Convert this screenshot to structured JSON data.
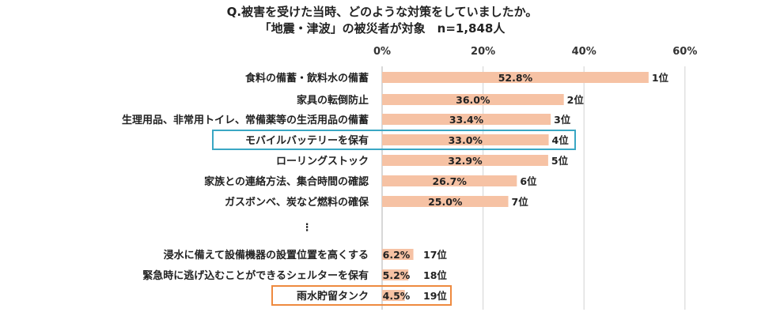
{
  "chart_data": {
    "type": "bar",
    "orientation": "horizontal",
    "title": "Q.被害を受けた当時、どのような対策をしていましたか。",
    "subtitle": "「地震・津波」の被災者が対象　n=1,848人",
    "xlim": [
      0,
      60
    ],
    "x_ticks": [
      "0%",
      "20%",
      "40%",
      "60%"
    ],
    "grid": true,
    "colors": {
      "bar": "#f6c2a4",
      "highlight_blue": "#3aa7c4",
      "highlight_orange": "#ee8a3f"
    },
    "ellipsis": "⋮",
    "categories": [
      "食料の備蓄・飲料水の備蓄",
      "家具の転倒防止",
      "生理用品、非常用トイレ、常備薬等の生活用品の備蓄",
      "モバイルバッテリーを保有",
      "ローリングストック",
      "家族との連絡方法、集合時間の確認",
      "ガスボンベ、炭など燃料の確保",
      "浸水に備えて設備機器の設置位置を高くする",
      "緊急時に逃げ込むことができるシェルターを保有",
      "雨水貯留タンク"
    ],
    "values": [
      52.8,
      36.0,
      33.4,
      33.0,
      32.9,
      26.7,
      25.0,
      6.2,
      5.2,
      4.5
    ],
    "value_labels": [
      "52.8%",
      "36.0%",
      "33.4%",
      "33.0%",
      "32.9%",
      "26.7%",
      "25.0%",
      "6.2%",
      "5.2%",
      "4.5%"
    ],
    "ranks": [
      "1位",
      "2位",
      "3位",
      "4位",
      "5位",
      "6位",
      "7位",
      "17位",
      "18位",
      "19位"
    ],
    "highlight": [
      {
        "category": "モバイルバッテリーを保有",
        "color": "#3aa7c4"
      },
      {
        "category": "雨水貯留タンク",
        "color": "#ee8a3f"
      }
    ]
  }
}
